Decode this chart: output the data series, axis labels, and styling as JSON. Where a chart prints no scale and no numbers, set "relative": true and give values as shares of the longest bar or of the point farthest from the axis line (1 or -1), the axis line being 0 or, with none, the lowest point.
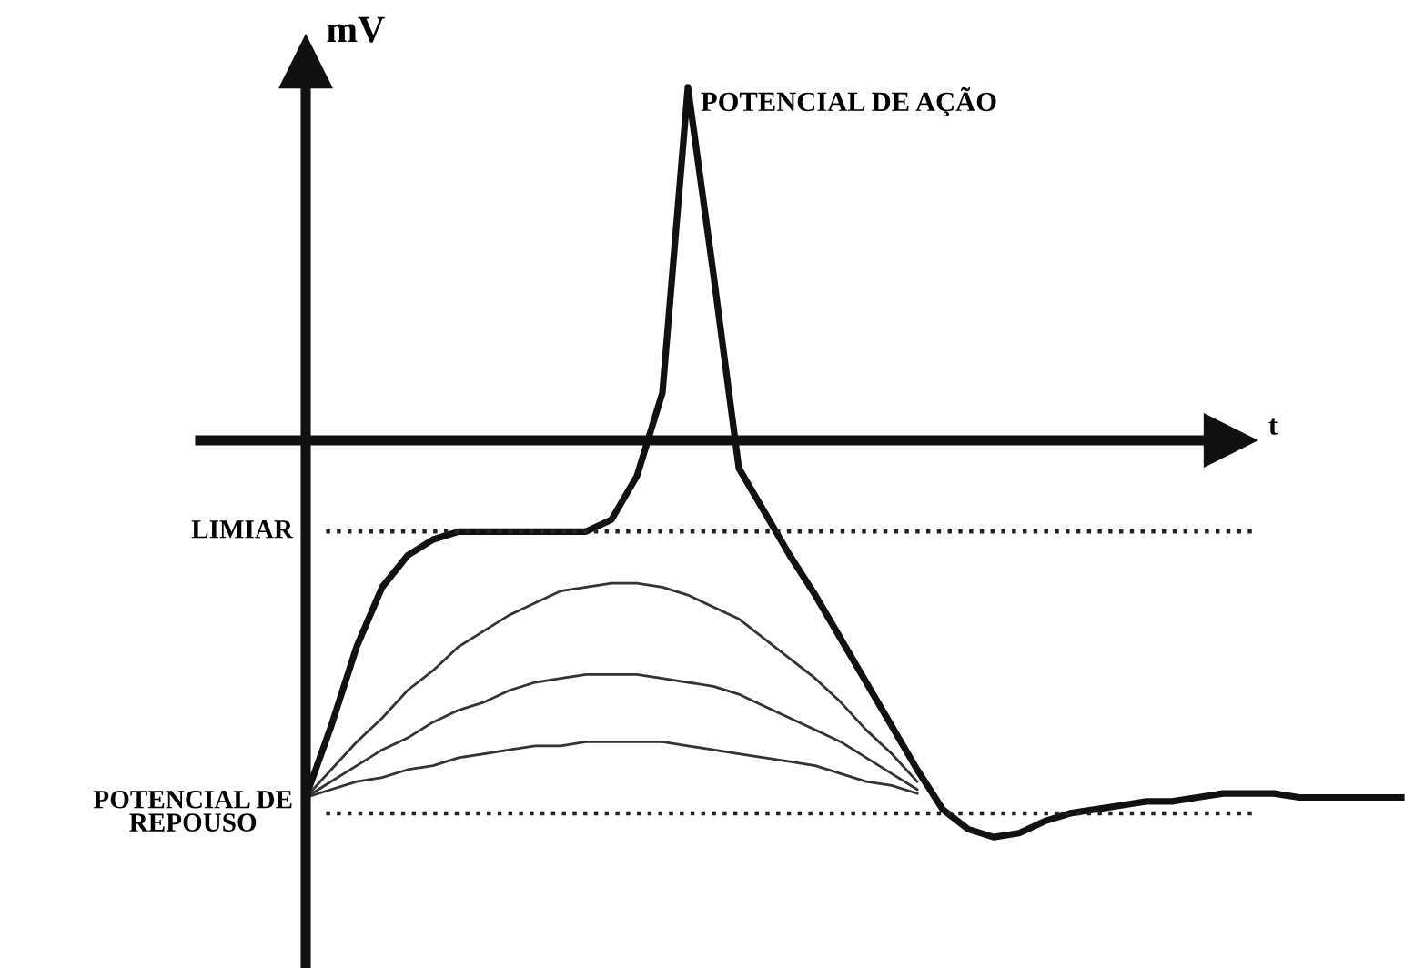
{
  "chart_data": {
    "type": "line",
    "relative": true,
    "xlabel": "t",
    "ylabel": "mV",
    "legend": false,
    "grid": false,
    "marker": "none",
    "line_style": "solid",
    "categories": [
      null,
      null,
      null,
      null,
      null,
      null,
      null,
      null,
      null,
      null,
      null,
      null,
      null,
      null,
      null,
      null,
      null,
      null,
      null,
      null,
      null,
      null,
      null,
      null,
      null,
      null,
      null,
      null,
      null,
      null,
      null,
      null,
      null,
      null,
      null,
      null,
      null,
      null,
      null,
      null,
      null,
      null,
      null,
      null
    ],
    "series": [
      {
        "name": "POTENCIAL DE AÇÃO",
        "color": "#111111",
        "values": [
          -0.9,
          -0.72,
          -0.52,
          -0.37,
          -0.29,
          -0.25,
          -0.23,
          -0.23,
          -0.23,
          -0.23,
          -0.23,
          -0.23,
          -0.2,
          -0.09,
          0.12,
          0.89,
          0.42,
          -0.07,
          -0.18,
          -0.29,
          -0.39,
          -0.5,
          -0.61,
          -0.72,
          -0.83,
          -0.93,
          -0.98,
          -1.0,
          -0.99,
          -0.96,
          -0.94,
          -0.93,
          -0.92,
          -0.91,
          -0.91,
          -0.9,
          -0.89,
          -0.89,
          -0.89,
          -0.9,
          -0.9,
          -0.9,
          -0.9,
          -0.9
        ]
      },
      {
        "color": "#333333",
        "values": [
          -0.9,
          -0.83,
          -0.76,
          -0.7,
          -0.63,
          -0.58,
          -0.52,
          -0.48,
          -0.44,
          -0.41,
          -0.38,
          -0.37,
          -0.36,
          -0.36,
          -0.37,
          -0.39,
          -0.42,
          -0.45,
          -0.5,
          -0.55,
          -0.6,
          -0.66,
          -0.73,
          -0.79,
          -0.86,
          null,
          null,
          null,
          null,
          null,
          null,
          null,
          null,
          null,
          null,
          null,
          null,
          null,
          null,
          null,
          null,
          null,
          null,
          null
        ]
      },
      {
        "color": "#333333",
        "values": [
          -0.9,
          -0.86,
          -0.82,
          -0.78,
          -0.75,
          -0.71,
          -0.68,
          -0.66,
          -0.63,
          -0.61,
          -0.6,
          -0.59,
          -0.59,
          -0.59,
          -0.6,
          -0.61,
          -0.62,
          -0.64,
          -0.67,
          -0.7,
          -0.73,
          -0.76,
          -0.8,
          -0.84,
          -0.88,
          null,
          null,
          null,
          null,
          null,
          null,
          null,
          null,
          null,
          null,
          null,
          null,
          null,
          null,
          null,
          null,
          null,
          null,
          null
        ]
      },
      {
        "color": "#333333",
        "values": [
          -0.9,
          -0.88,
          -0.86,
          -0.85,
          -0.83,
          -0.82,
          -0.8,
          -0.79,
          -0.78,
          -0.77,
          -0.77,
          -0.76,
          -0.76,
          -0.76,
          -0.76,
          -0.77,
          -0.78,
          -0.79,
          -0.8,
          -0.81,
          -0.82,
          -0.84,
          -0.86,
          -0.87,
          -0.89,
          null,
          null,
          null,
          null,
          null,
          null,
          null,
          null,
          null,
          null,
          null,
          null,
          null,
          null,
          null,
          null,
          null,
          null,
          null
        ]
      }
    ],
    "ref_lines": [
      {
        "axis": "y",
        "value": -0.23,
        "label": "LIMIAR",
        "line_style": "dotted",
        "color": "#222222"
      },
      {
        "axis": "y",
        "value": -0.94,
        "label": "POTENCIAL DE\nREPOUSO",
        "line_style": "dotted",
        "color": "#222222"
      }
    ]
  }
}
